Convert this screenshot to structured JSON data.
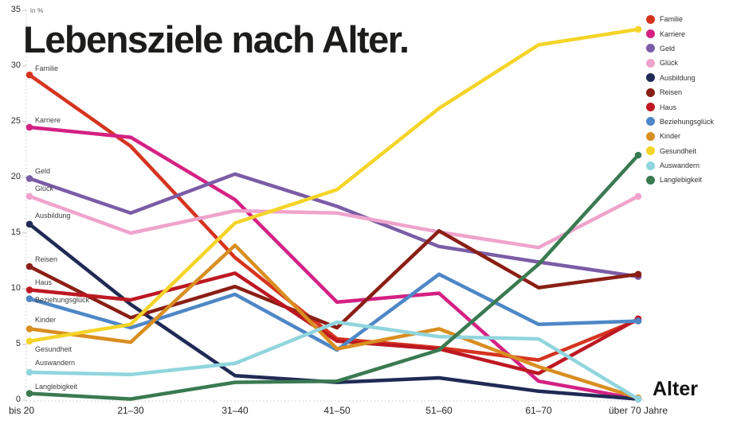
{
  "title": "Lebensziele nach Alter.",
  "y_axis": {
    "unit_label": "in %"
  },
  "x_axis": {
    "title": "Alter"
  },
  "chart_data": {
    "type": "line",
    "title": "Lebensziele nach Alter.",
    "xlabel": "Alter",
    "ylabel": "in %",
    "categories": [
      "bis 20",
      "21–30",
      "31–40",
      "41–50",
      "51–60",
      "61–70",
      "über 70 Jahre"
    ],
    "ylim": [
      0,
      35
    ],
    "yticks": [
      0,
      5,
      10,
      15,
      20,
      25,
      30,
      35
    ],
    "grid": "dotted-axes-only",
    "legend_position": "right",
    "series": [
      {
        "name": "Familie",
        "color": "#d5341f",
        "values": [
          29.2,
          22.8,
          12.8,
          5.5,
          4.7,
          3.6,
          7.2
        ]
      },
      {
        "name": "Karriere",
        "color": "#d42183",
        "values": [
          24.5,
          23.6,
          18.0,
          8.8,
          9.6,
          1.7,
          0.1
        ]
      },
      {
        "name": "Geld",
        "color": "#7b5ca6",
        "values": [
          19.9,
          16.8,
          20.3,
          17.4,
          13.8,
          12.4,
          11.1
        ]
      },
      {
        "name": "Glück",
        "color": "#efa3cc",
        "values": [
          18.3,
          15.0,
          17.0,
          16.8,
          15.1,
          13.7,
          18.3
        ]
      },
      {
        "name": "Ausbildung",
        "color": "#1f2a55",
        "values": [
          15.8,
          8.6,
          2.2,
          1.6,
          2.0,
          0.8,
          0.1
        ]
      },
      {
        "name": "Reisen",
        "color": "#8a1f15",
        "values": [
          12.0,
          7.4,
          10.2,
          6.5,
          15.2,
          10.1,
          11.3
        ]
      },
      {
        "name": "Haus",
        "color": "#bd1822",
        "values": [
          9.9,
          9.0,
          11.4,
          5.3,
          4.6,
          2.4,
          7.3
        ]
      },
      {
        "name": "Beziehungsglück",
        "color": "#4e87c6",
        "values": [
          9.1,
          6.5,
          9.5,
          4.5,
          11.3,
          6.8,
          7.1
        ]
      },
      {
        "name": "Kinder",
        "color": "#d98e21",
        "values": [
          6.4,
          5.2,
          13.9,
          4.6,
          6.4,
          3.0,
          0.2
        ]
      },
      {
        "name": "Gesundheit",
        "color": "#f4d428",
        "values": [
          5.3,
          6.8,
          15.9,
          18.9,
          26.2,
          31.9,
          33.3
        ]
      },
      {
        "name": "Auswandern",
        "color": "#90d5de",
        "values": [
          2.5,
          2.3,
          3.3,
          7.0,
          5.7,
          5.5,
          0.1
        ]
      },
      {
        "name": "Langlebigkeit",
        "color": "#3a7a51",
        "values": [
          0.6,
          0.1,
          1.6,
          1.7,
          4.5,
          12.2,
          22.0
        ]
      }
    ]
  }
}
